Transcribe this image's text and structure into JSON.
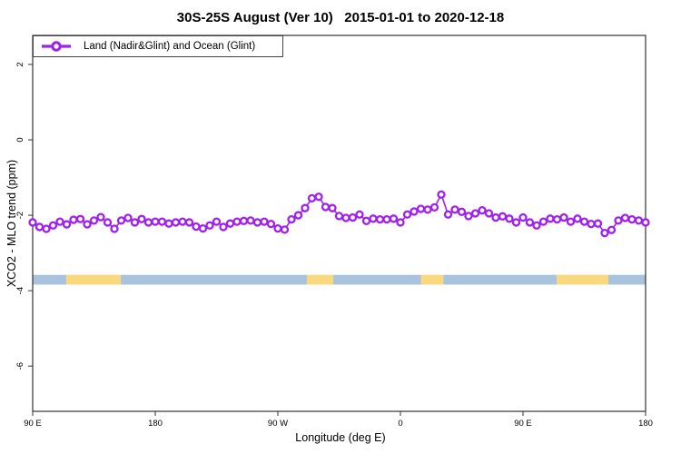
{
  "title": "30S-25S August (Ver 10)   2015-01-01 to 2020-12-18",
  "legend": {
    "label": "Land (Nadir&Glint) and Ocean (Glint)"
  },
  "colors": {
    "series": "#A020F0",
    "ocean_band": "#A9C2DE",
    "land_band": "#FAD97E",
    "axis": "#333333",
    "text": "#000000",
    "background": "#ffffff"
  },
  "chart_data": {
    "type": "line",
    "title": "30S-25S August (Ver 10)   2015-01-01 to 2020-12-18",
    "xlabel": "Longitude (deg E)",
    "ylabel": "XCO2 - MLO trend (ppm)",
    "xlim": [
      90,
      540
    ],
    "ylim": [
      -7.2,
      2.77
    ],
    "grid": false,
    "legend_position": "top-left",
    "x_ticks": [
      {
        "value": 90,
        "label": "90 E"
      },
      {
        "value": 180,
        "label": "180"
      },
      {
        "value": 270,
        "label": "90 W"
      },
      {
        "value": 360,
        "label": "0"
      },
      {
        "value": 450,
        "label": "90 E"
      },
      {
        "value": 540,
        "label": "180"
      }
    ],
    "y_ticks": [
      {
        "value": 2,
        "label": "2"
      },
      {
        "value": 0,
        "label": "0"
      },
      {
        "value": -2,
        "label": "-2"
      },
      {
        "value": -4,
        "label": "-4"
      },
      {
        "value": -6,
        "label": "-6"
      }
    ],
    "series": [
      {
        "name": "Land (Nadir&Glint) and Ocean (Glint)",
        "color": "#A020F0",
        "marker": "open-circle",
        "x": [
          90,
          95,
          100,
          105,
          110,
          115,
          120,
          125,
          130,
          135,
          140,
          145,
          150,
          155,
          160,
          165,
          170,
          175,
          180,
          185,
          190,
          195,
          200,
          205,
          210,
          215,
          220,
          225,
          230,
          235,
          240,
          245,
          250,
          255,
          260,
          265,
          270,
          275,
          280,
          285,
          290,
          295,
          300,
          305,
          310,
          315,
          320,
          325,
          330,
          335,
          340,
          345,
          350,
          355,
          360,
          365,
          370,
          375,
          380,
          385,
          390,
          395,
          400,
          405,
          410,
          415,
          420,
          425,
          430,
          435,
          440,
          445,
          450,
          455,
          460,
          465,
          470,
          475,
          480,
          485,
          490,
          495,
          500,
          505,
          510,
          515,
          520,
          525,
          530,
          535,
          540
        ],
        "y": [
          -2.19,
          -2.31,
          -2.36,
          -2.27,
          -2.17,
          -2.24,
          -2.12,
          -2.1,
          -2.24,
          -2.14,
          -2.05,
          -2.19,
          -2.36,
          -2.14,
          -2.07,
          -2.19,
          -2.1,
          -2.19,
          -2.17,
          -2.17,
          -2.22,
          -2.19,
          -2.17,
          -2.19,
          -2.3,
          -2.35,
          -2.27,
          -2.17,
          -2.31,
          -2.22,
          -2.17,
          -2.15,
          -2.14,
          -2.19,
          -2.17,
          -2.23,
          -2.35,
          -2.38,
          -2.11,
          -2.0,
          -1.81,
          -1.55,
          -1.51,
          -1.78,
          -1.81,
          -2.02,
          -2.07,
          -2.06,
          -1.98,
          -2.15,
          -2.09,
          -2.11,
          -2.11,
          -2.09,
          -2.19,
          -1.98,
          -1.9,
          -1.83,
          -1.85,
          -1.79,
          -1.45,
          -1.98,
          -1.85,
          -1.91,
          -2.02,
          -1.95,
          -1.87,
          -1.95,
          -2.06,
          -2.03,
          -2.09,
          -2.19,
          -2.06,
          -2.19,
          -2.27,
          -2.17,
          -2.09,
          -2.11,
          -2.06,
          -2.17,
          -2.09,
          -2.17,
          -2.23,
          -2.22,
          -2.47,
          -2.39,
          -2.14,
          -2.07,
          -2.11,
          -2.14,
          -2.19
        ]
      }
    ],
    "surface_band": {
      "description": "horizontal strip indicating surface type along longitude",
      "y_center": -3.71,
      "height": 0.26,
      "ocean_color": "#A9C2DE",
      "land_color": "#FAD97E",
      "segments": [
        {
          "from": 90,
          "to": 114.7,
          "type": "ocean"
        },
        {
          "from": 114.7,
          "to": 154.7,
          "type": "land"
        },
        {
          "from": 154.7,
          "to": 291.3,
          "type": "ocean"
        },
        {
          "from": 291.3,
          "to": 310.7,
          "type": "land"
        },
        {
          "from": 310.7,
          "to": 375.0,
          "type": "ocean"
        },
        {
          "from": 375.0,
          "to": 391.5,
          "type": "land"
        },
        {
          "from": 391.5,
          "to": 474.7,
          "type": "ocean"
        },
        {
          "from": 474.7,
          "to": 512.7,
          "type": "land"
        },
        {
          "from": 512.7,
          "to": 540,
          "type": "ocean"
        }
      ]
    }
  }
}
